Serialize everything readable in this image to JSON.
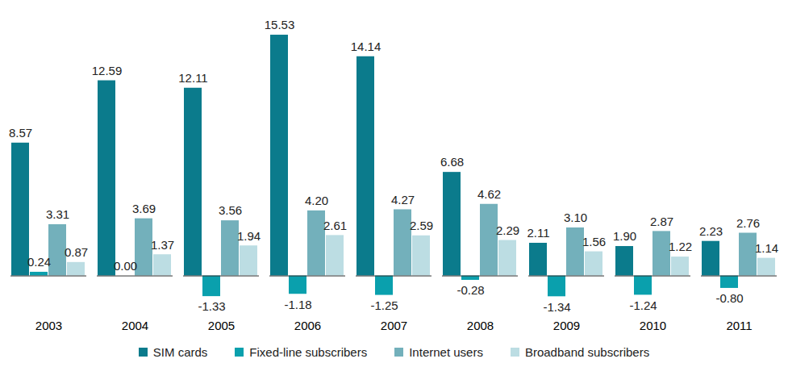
{
  "chart_data": {
    "type": "bar",
    "categories": [
      "2003",
      "2004",
      "2005",
      "2006",
      "2007",
      "2008",
      "2009",
      "2010",
      "2011"
    ],
    "series": [
      {
        "name": "SIM cards",
        "color": "#0b7b8c",
        "values": [
          8.57,
          12.59,
          12.11,
          15.53,
          14.14,
          6.68,
          2.11,
          1.9,
          2.23
        ],
        "value_labels": [
          "8.57",
          "12.59",
          "12.11",
          "15.53",
          "14.14",
          "6.68",
          "2.11",
          "1.90",
          "2.23"
        ]
      },
      {
        "name": "Fixed-line subscribers",
        "color": "#0aa0ad",
        "values": [
          0.24,
          0.0,
          -1.33,
          -1.18,
          -1.25,
          -0.28,
          -1.34,
          -1.24,
          -0.8
        ],
        "value_labels": [
          "0.24",
          "0.00",
          "-1.33",
          "-1.18",
          "-1.25",
          "-0.28",
          "-1.34",
          "-1.24",
          "-0.80"
        ]
      },
      {
        "name": "Internet users",
        "color": "#73b0bb",
        "values": [
          3.31,
          3.69,
          3.56,
          4.2,
          4.27,
          4.62,
          3.1,
          2.87,
          2.76
        ],
        "value_labels": [
          "3.31",
          "3.69",
          "3.56",
          "4.20",
          "4.27",
          "4.62",
          "3.10",
          "2.87",
          "2.76"
        ]
      },
      {
        "name": "Broadband subscribers",
        "color": "#bcdde3",
        "values": [
          0.87,
          1.37,
          1.94,
          2.61,
          2.59,
          2.29,
          1.56,
          1.22,
          1.14
        ],
        "value_labels": [
          "0.87",
          "1.37",
          "1.94",
          "2.61",
          "2.59",
          "2.29",
          "1.56",
          "1.22",
          "1.14"
        ]
      }
    ],
    "ylim": [
      -2,
      16
    ],
    "yticks": [
      0
    ],
    "tick_labels": "x",
    "data_labels": true,
    "legend": "bottom"
  }
}
